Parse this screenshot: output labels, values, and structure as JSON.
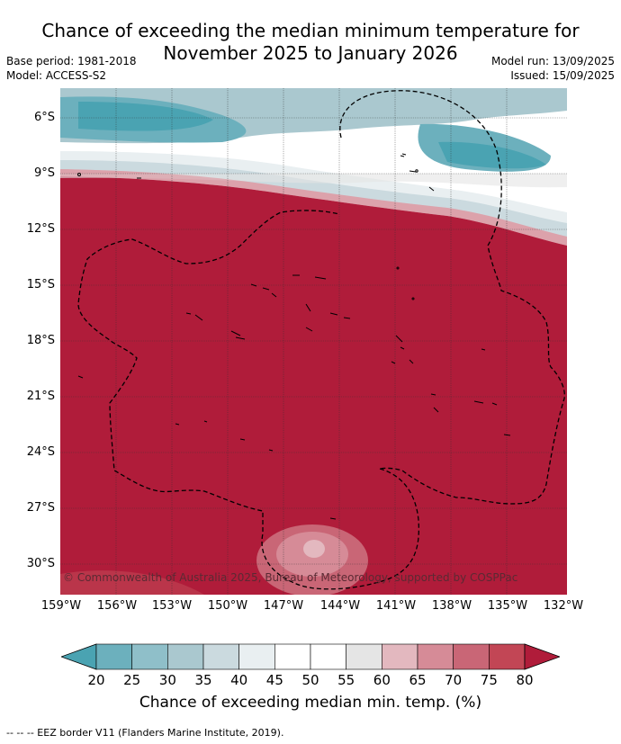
{
  "title_line1": "Chance of exceeding the median minimum temperature for",
  "title_line2": "November 2025 to January 2026",
  "meta": {
    "base_period": "Base period: 1981-2018",
    "model": "Model: ACCESS-S2",
    "model_run": "Model run: 13/09/2025",
    "issued": "Issued: 15/09/2025"
  },
  "map": {
    "lat_labels": [
      "6°S",
      "9°S",
      "12°S",
      "15°S",
      "18°S",
      "21°S",
      "24°S",
      "27°S",
      "30°S"
    ],
    "lon_labels": [
      "159°W",
      "156°W",
      "153°W",
      "150°W",
      "147°W",
      "144°W",
      "141°W",
      "138°W",
      "135°W",
      "132°W"
    ],
    "copyright": "© Commonwealth of Australia 2025, Bureau of Meteorology, supported by COSPPac",
    "dominant_color": "#b01c3a",
    "eez_border_style": "dashed"
  },
  "colorbar": {
    "ticks": [
      "20",
      "25",
      "30",
      "35",
      "40",
      "45",
      "50",
      "55",
      "60",
      "65",
      "70",
      "75",
      "80"
    ],
    "colors": [
      "#4aa3b2",
      "#6cb0bd",
      "#8fbfc9",
      "#aac8cf",
      "#cbdadf",
      "#e9eff1",
      "#ffffff",
      "#ffffff",
      "#e5e5e5",
      "#e3b8bf",
      "#d68b97",
      "#c96676",
      "#c24655",
      "#b01c3a"
    ],
    "title": "Chance of exceeding median min. temp. (%)"
  },
  "footer": "--  --  -- EEZ border V11 (Flanders Marine Institute, 2019)."
}
